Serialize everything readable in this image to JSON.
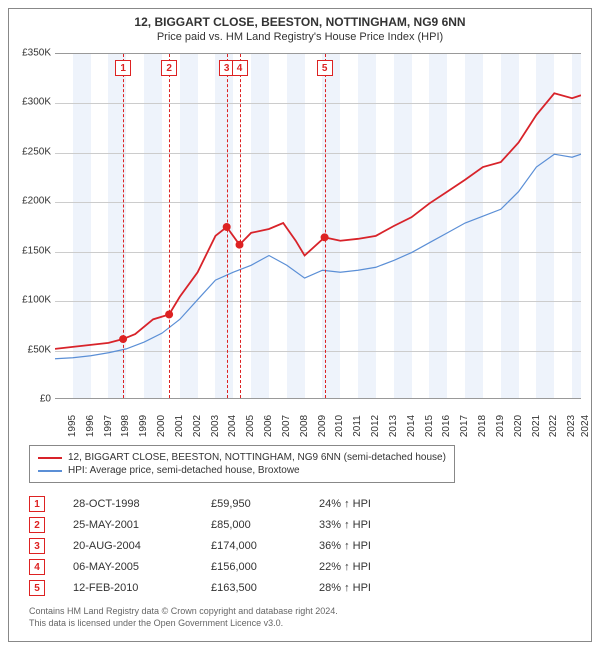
{
  "title": {
    "line1": "12, BIGGART CLOSE, BEESTON, NOTTINGHAM, NG9 6NN",
    "line2": "Price paid vs. HM Land Registry's House Price Index (HPI)"
  },
  "chart": {
    "type": "line",
    "xlim": [
      1995,
      2024.5
    ],
    "ylim": [
      0,
      350000
    ],
    "ytick_step": 50000,
    "ytick_labels": [
      "£0",
      "£50K",
      "£100K",
      "£150K",
      "£200K",
      "£250K",
      "£300K",
      "£350K"
    ],
    "xtick_years": [
      1995,
      1996,
      1997,
      1998,
      1999,
      2000,
      2001,
      2002,
      2003,
      2004,
      2005,
      2006,
      2007,
      2008,
      2009,
      2010,
      2011,
      2012,
      2013,
      2014,
      2015,
      2016,
      2017,
      2018,
      2019,
      2020,
      2021,
      2022,
      2023,
      2024
    ],
    "background_color": "#ffffff",
    "grid_color": "#cccccc",
    "shade_color": "#eef3fb",
    "series": {
      "property": {
        "label": "12, BIGGART CLOSE, BEESTON, NOTTINGHAM, NG9 6NN (semi-detached house)",
        "color": "#d8232a",
        "width": 1.8,
        "points": [
          [
            1995,
            50000
          ],
          [
            1996,
            52000
          ],
          [
            1997,
            54000
          ],
          [
            1998,
            56000
          ],
          [
            1998.82,
            59950
          ],
          [
            1999.5,
            65000
          ],
          [
            2000.5,
            80000
          ],
          [
            2001.4,
            85000
          ],
          [
            2002,
            103000
          ],
          [
            2003,
            128000
          ],
          [
            2004,
            165000
          ],
          [
            2004.63,
            174000
          ],
          [
            2005.35,
            156000
          ],
          [
            2006,
            168000
          ],
          [
            2007,
            172000
          ],
          [
            2007.8,
            178000
          ],
          [
            2008.5,
            160000
          ],
          [
            2009,
            145000
          ],
          [
            2010.12,
            163500
          ],
          [
            2011,
            160000
          ],
          [
            2012,
            162000
          ],
          [
            2013,
            165000
          ],
          [
            2014,
            175000
          ],
          [
            2015,
            184000
          ],
          [
            2016,
            198000
          ],
          [
            2017,
            210000
          ],
          [
            2018,
            222000
          ],
          [
            2019,
            235000
          ],
          [
            2020,
            240000
          ],
          [
            2021,
            260000
          ],
          [
            2022,
            288000
          ],
          [
            2023,
            310000
          ],
          [
            2024,
            305000
          ],
          [
            2024.5,
            308000
          ]
        ]
      },
      "hpi": {
        "label": "HPI: Average price, semi-detached house, Broxtowe",
        "color": "#5b8fd6",
        "width": 1.2,
        "points": [
          [
            1995,
            40000
          ],
          [
            1996,
            41000
          ],
          [
            1997,
            43000
          ],
          [
            1998,
            46000
          ],
          [
            1999,
            50000
          ],
          [
            2000,
            57000
          ],
          [
            2001,
            66000
          ],
          [
            2002,
            80000
          ],
          [
            2003,
            100000
          ],
          [
            2004,
            120000
          ],
          [
            2005,
            128000
          ],
          [
            2006,
            135000
          ],
          [
            2007,
            145000
          ],
          [
            2008,
            135000
          ],
          [
            2009,
            122000
          ],
          [
            2010,
            130000
          ],
          [
            2011,
            128000
          ],
          [
            2012,
            130000
          ],
          [
            2013,
            133000
          ],
          [
            2014,
            140000
          ],
          [
            2015,
            148000
          ],
          [
            2016,
            158000
          ],
          [
            2017,
            168000
          ],
          [
            2018,
            178000
          ],
          [
            2019,
            185000
          ],
          [
            2020,
            192000
          ],
          [
            2021,
            210000
          ],
          [
            2022,
            235000
          ],
          [
            2023,
            248000
          ],
          [
            2024,
            245000
          ],
          [
            2024.5,
            248000
          ]
        ]
      }
    },
    "markers": [
      {
        "n": 1,
        "year": 1998.82,
        "value": 59950
      },
      {
        "n": 2,
        "year": 2001.4,
        "value": 85000
      },
      {
        "n": 3,
        "year": 2004.63,
        "value": 174000
      },
      {
        "n": 4,
        "year": 2005.35,
        "value": 156000
      },
      {
        "n": 5,
        "year": 2010.12,
        "value": 163500
      }
    ]
  },
  "sales": [
    {
      "n": "1",
      "date": "28-OCT-1998",
      "price": "£59,950",
      "delta": "24% ↑ HPI"
    },
    {
      "n": "2",
      "date": "25-MAY-2001",
      "price": "£85,000",
      "delta": "33% ↑ HPI"
    },
    {
      "n": "3",
      "date": "20-AUG-2004",
      "price": "£174,000",
      "delta": "36% ↑ HPI"
    },
    {
      "n": "4",
      "date": "06-MAY-2005",
      "price": "£156,000",
      "delta": "22% ↑ HPI"
    },
    {
      "n": "5",
      "date": "12-FEB-2010",
      "price": "£163,500",
      "delta": "28% ↑ HPI"
    }
  ],
  "footer": {
    "line1": "Contains HM Land Registry data © Crown copyright and database right 2024.",
    "line2": "This data is licensed under the Open Government Licence v3.0."
  }
}
